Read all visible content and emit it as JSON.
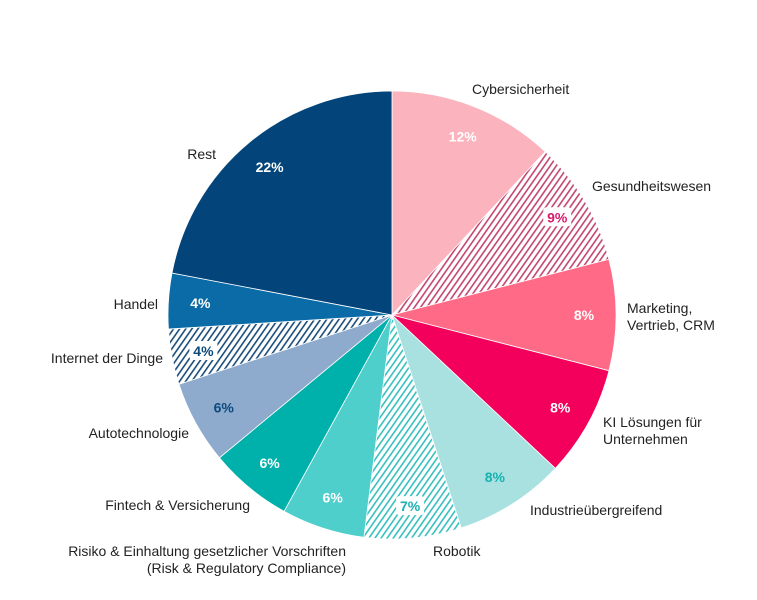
{
  "chart_data": {
    "type": "pie",
    "title": "",
    "start": "top, clockwise",
    "slices": [
      {
        "label": "Cybersicherheit",
        "value": 12,
        "color": "#fbb3bd",
        "hatched": false,
        "text_color": "#ffffff"
      },
      {
        "label": "Gesundheitswesen",
        "value": 9,
        "color": "#c2466f",
        "hatched": true,
        "text_color": "#d81b6a"
      },
      {
        "label": "Marketing, Vertrieb, CRM",
        "value": 8,
        "color": "#ff6b86",
        "hatched": false,
        "text_color": "#ffffff"
      },
      {
        "label": "KI Lösungen für Unternehmen",
        "value": 8,
        "color": "#f2005b",
        "hatched": false,
        "text_color": "#ffffff"
      },
      {
        "label": "Industrieübergreifend",
        "value": 8,
        "color": "#a9e1e1",
        "hatched": false,
        "text_color": "#17b2b0"
      },
      {
        "label": "Robotik",
        "value": 7,
        "color": "#37bfbd",
        "hatched": true,
        "text_color": "#17b2b0"
      },
      {
        "label": "Risiko & Einhaltung gesetzlicher Vorschriften (Risk & Regulatory Compliance)",
        "value": 6,
        "color": "#4ecfcb",
        "hatched": false,
        "text_color": "#ffffff"
      },
      {
        "label": "Fintech & Versicherung",
        "value": 6,
        "color": "#00b1ab",
        "hatched": false,
        "text_color": "#ffffff"
      },
      {
        "label": "Autotechnologie",
        "value": 6,
        "color": "#8eabcd",
        "hatched": false,
        "text_color": "#0b4a7c"
      },
      {
        "label": "Internet der Dinge",
        "value": 4,
        "color": "#1a4d7a",
        "hatched": true,
        "text_color": "#0b4a7c"
      },
      {
        "label": "Handel",
        "value": 4,
        "color": "#0a6ba6",
        "hatched": false,
        "text_color": "#ffffff"
      },
      {
        "label": "Rest",
        "value": 22,
        "color": "#03457a",
        "hatched": false,
        "text_color": "#ffffff"
      }
    ],
    "label_lines": {
      "marketing": [
        "Marketing,",
        "Vertrieb, CRM"
      ],
      "ki": [
        "KI Lösungen für",
        "Unternehmen"
      ],
      "risiko": [
        "Risiko & Einhaltung gesetzlicher Vorschriften",
        "(Risk & Regulatory Compliance)"
      ]
    },
    "unit": "%"
  }
}
